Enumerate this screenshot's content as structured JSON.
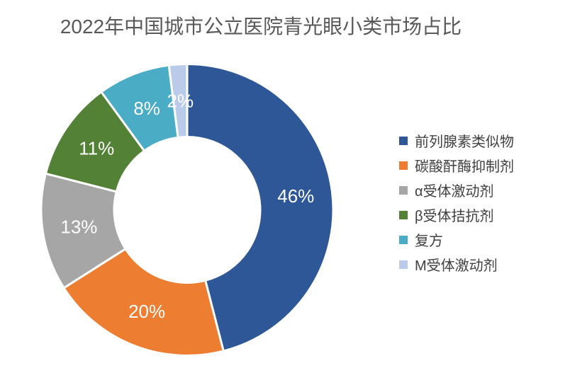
{
  "title": "2022年中国城市公立医院青光眼小类市场占比",
  "chart_data": {
    "type": "pie",
    "subtype": "donut",
    "title": "2022年中国城市公立医院青光眼小类市场占比",
    "categories": [
      "前列腺素类似物",
      "碳酸酐酶抑制剂",
      "α受体激动剂",
      "β受体拮抗剂",
      "复方",
      "M受体激动剂"
    ],
    "values": [
      46,
      20,
      13,
      11,
      8,
      2
    ],
    "data_labels": [
      "46%",
      "20%",
      "13%",
      "11%",
      "8%",
      "2%"
    ],
    "unit": "%",
    "colors": [
      "#2E5797",
      "#ED7D31",
      "#A6A6A6",
      "#538135",
      "#4AACC5",
      "#B9CBE8"
    ],
    "legend_position": "right",
    "start_angle_deg": 0,
    "direction": "clockwise",
    "donut_hole_ratio": 0.5,
    "slice_gap_color": "#FFFFFF",
    "data_label_color": "#FFFFFF"
  },
  "legend": {
    "items": [
      {
        "label": "前列腺素类似物",
        "color": "#2E5797"
      },
      {
        "label": "碳酸酐酶抑制剂",
        "color": "#ED7D31"
      },
      {
        "label": "α受体激动剂",
        "color": "#A6A6A6"
      },
      {
        "label": "β受体拮抗剂",
        "color": "#538135"
      },
      {
        "label": "复方",
        "color": "#4AACC5"
      },
      {
        "label": "M受体激动剂",
        "color": "#B9CBE8"
      }
    ]
  },
  "styles": {
    "background": "#FFFFFF",
    "title_color": "#595959",
    "legend_text_color": "#404040"
  }
}
